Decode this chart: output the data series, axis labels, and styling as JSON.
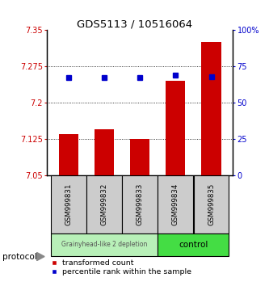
{
  "title": "GDS5113 / 10516064",
  "samples": [
    "GSM999831",
    "GSM999832",
    "GSM999833",
    "GSM999834",
    "GSM999835"
  ],
  "red_values": [
    7.135,
    7.145,
    7.125,
    7.245,
    7.325
  ],
  "blue_values": [
    67,
    67,
    67,
    69,
    68
  ],
  "ylim_left": [
    7.05,
    7.35
  ],
  "ylim_right": [
    0,
    100
  ],
  "yticks_left": [
    7.05,
    7.125,
    7.2,
    7.275,
    7.35
  ],
  "yticks_right": [
    0,
    25,
    50,
    75,
    100
  ],
  "ytick_labels_left": [
    "7.05",
    "7.125",
    "7.2",
    "7.275",
    "7.35"
  ],
  "ytick_labels_right": [
    "0",
    "25",
    "50",
    "75",
    "100%"
  ],
  "bar_color": "#cc0000",
  "dot_color": "#0000cc",
  "bar_width": 0.55,
  "group1_samples": [
    0,
    1,
    2
  ],
  "group2_samples": [
    3,
    4
  ],
  "group1_label": "Grainyhead-like 2 depletion",
  "group2_label": "control",
  "group1_color": "#b8f0b8",
  "group2_color": "#44dd44",
  "protocol_label": "protocol",
  "legend_red": "transformed count",
  "legend_blue": "percentile rank within the sample",
  "background_color": "#ffffff",
  "sample_box_color": "#cccccc",
  "grid_dotted_vals": [
    7.125,
    7.2,
    7.275
  ]
}
